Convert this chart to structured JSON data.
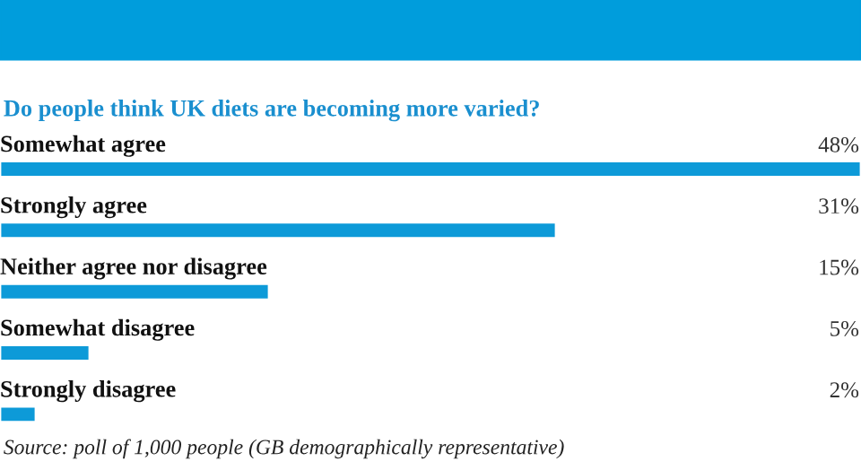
{
  "chart_data": {
    "type": "bar",
    "orientation": "horizontal",
    "title": "Do people think UK diets are becoming more varied?",
    "categories": [
      "Somewhat agree",
      "Strongly agree",
      "Neither agree nor disagree",
      "Somewhat disagree",
      "Strongly disagree"
    ],
    "values": [
      48,
      31,
      15,
      5,
      2
    ],
    "value_labels": [
      "48%",
      "31%",
      "15%",
      "5%",
      "2%"
    ],
    "color": "#0d9ad8",
    "xlim": [
      0,
      48
    ],
    "annotations": [
      "Source: poll of 1,000 people (GB demographically representative)"
    ]
  }
}
